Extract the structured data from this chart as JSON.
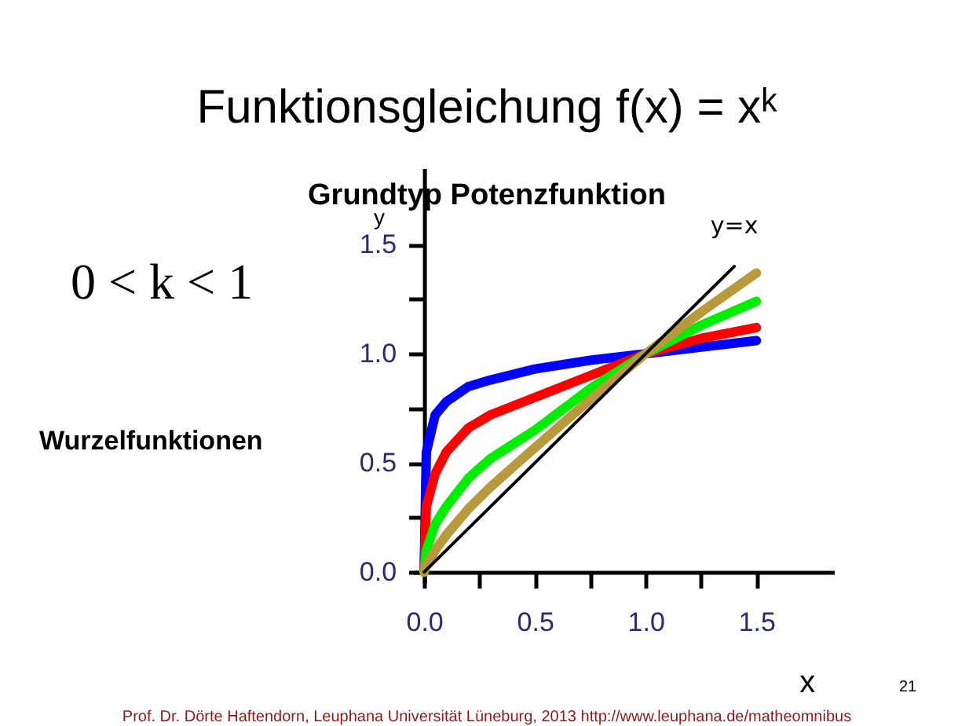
{
  "chart_data": {
    "type": "line",
    "title": "Funktionsgleichung f(x) = xᵏ",
    "subtitle": "Grundtyp Potenzfunktion",
    "xlabel": "x",
    "ylabel": "y",
    "x": [
      0,
      0.01,
      0.05,
      0.1,
      0.2,
      0.3,
      0.5,
      0.75,
      1.0,
      1.25,
      1.5
    ],
    "series": [
      {
        "color": "#0000ff",
        "values": [
          0,
          0.55,
          0.72,
          0.78,
          0.85,
          0.88,
          0.93,
          0.97,
          1.0,
          1.03,
          1.06
        ]
      },
      {
        "color": "#ff0000",
        "values": [
          0,
          0.3,
          0.45,
          0.55,
          0.66,
          0.72,
          0.8,
          0.9,
          1.0,
          1.07,
          1.12
        ]
      },
      {
        "color": "#00ee00",
        "values": [
          0,
          0.1,
          0.22,
          0.3,
          0.43,
          0.52,
          0.65,
          0.84,
          1.0,
          1.13,
          1.24
        ]
      },
      {
        "color": "#b89a3c",
        "values": [
          0,
          0.03,
          0.1,
          0.17,
          0.29,
          0.39,
          0.57,
          0.79,
          1.0,
          1.19,
          1.37
        ]
      },
      {
        "color": "#000000",
        "x": [
          0,
          1.4
        ],
        "values": [
          0,
          1.4
        ]
      }
    ],
    "annotations": [
      "0 < k < 1",
      "Wurzelfunktionen",
      "y=x",
      "Prof. Dr. Dörte Haftendorn, Leuphana Universität Lüneburg, 2013 http://www.leuphana.de/matheomnibus",
      "21"
    ],
    "xlim": [
      -0.05,
      1.85
    ],
    "ylim": [
      -0.05,
      1.85
    ],
    "xticks": [
      {
        "value": 0,
        "label": "0.0"
      },
      {
        "value": 0.25,
        "label": null
      },
      {
        "value": 0.5,
        "label": "0.5"
      },
      {
        "value": 0.75,
        "label": null
      },
      {
        "value": 1.0,
        "label": "1.0"
      },
      {
        "value": 1.25,
        "label": null
      },
      {
        "value": 1.5,
        "label": "1.5"
      }
    ],
    "yticks": [
      {
        "value": 0,
        "label": "0.0"
      },
      {
        "value": 0.25,
        "label": null
      },
      {
        "value": 0.5,
        "label": "0.5"
      },
      {
        "value": 0.75,
        "label": null
      },
      {
        "value": 1.0,
        "label": "1.0"
      },
      {
        "value": 1.25,
        "label": null
      },
      {
        "value": 1.5,
        "label": "1.5"
      }
    ],
    "grid": false,
    "marker": "none",
    "line_style": "solid"
  }
}
